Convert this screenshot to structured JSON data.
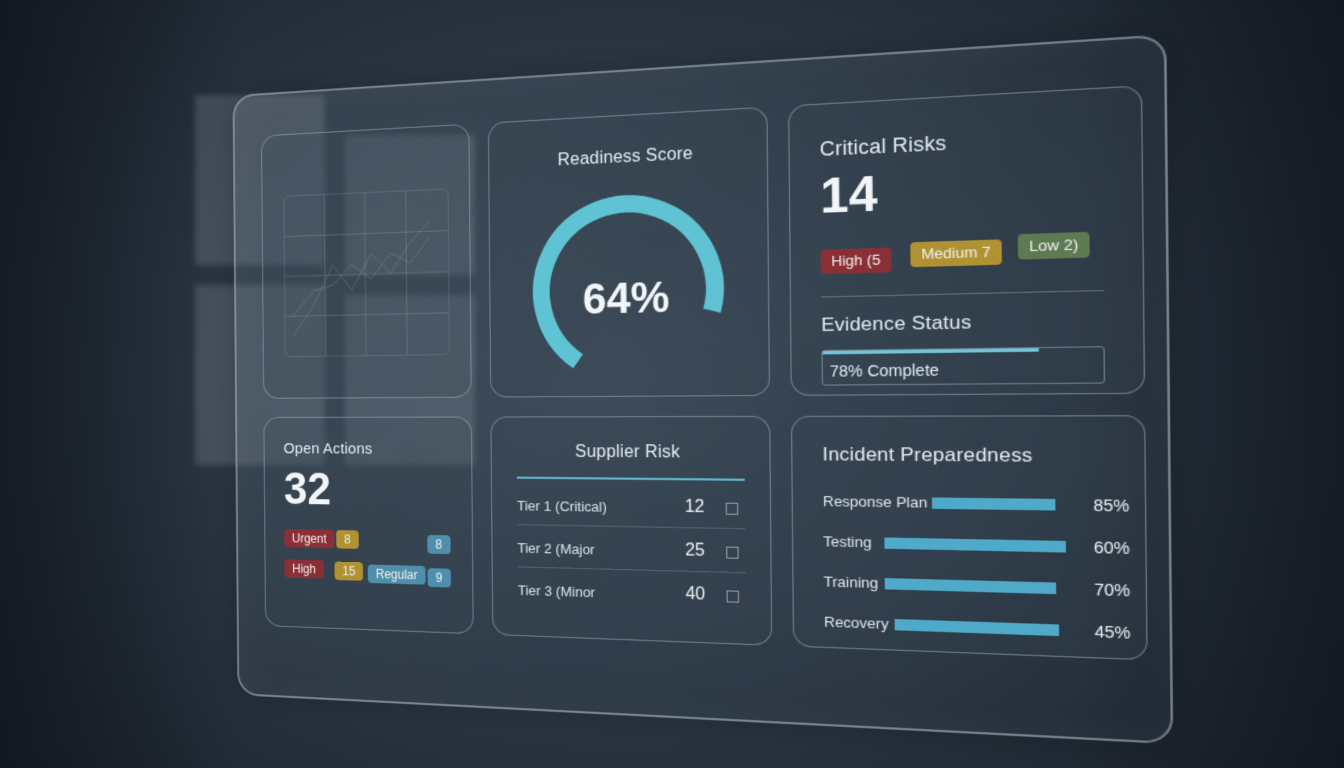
{
  "colors": {
    "accent": "#6fc6d8",
    "high": "#8a2f36",
    "medium": "#b09232",
    "low": "#5e7a52",
    "regular": "#4f8fac"
  },
  "readiness": {
    "title": "Readiness Score",
    "value_label": "64%",
    "value": 0.64
  },
  "critical_risks": {
    "title": "Critical Risks",
    "count": "14",
    "badges": [
      {
        "label": "High (5",
        "level": "high"
      },
      {
        "label": "Medium 7",
        "level": "medium"
      },
      {
        "label": "Low 2)",
        "level": "low"
      }
    ]
  },
  "evidence": {
    "title": "Evidence Status",
    "label": "78% Complete",
    "value": 0.78
  },
  "open_actions": {
    "title": "Open Actions",
    "count": "32",
    "badges": [
      {
        "label": "Urgent",
        "level": "high"
      },
      {
        "label": "8",
        "level": "medium"
      },
      {
        "label": "8",
        "level": "regular"
      },
      {
        "label": "High",
        "level": "high"
      },
      {
        "label": "15",
        "level": "medium"
      },
      {
        "label": "Regular",
        "level": "regular"
      },
      {
        "label": "9",
        "level": "regular"
      }
    ]
  },
  "supplier_risk": {
    "title": "Supplier Risk",
    "rows": [
      {
        "label": "Tier 1 (Critical)",
        "value": "12"
      },
      {
        "label": "Tier 2 (Major",
        "value": "25"
      },
      {
        "label": "Tier 3 (Minor",
        "value": "40"
      }
    ]
  },
  "incident": {
    "title": "Incident Preparedness",
    "items": [
      {
        "label": "Response Plan",
        "pct_label": "85%",
        "value": 0.85
      },
      {
        "label": "Testing",
        "pct_label": "60%",
        "value": 0.6
      },
      {
        "label": "Training",
        "pct_label": "70%",
        "value": 0.7
      },
      {
        "label": "Recovery",
        "pct_label": "45%",
        "value": 0.45
      }
    ]
  }
}
